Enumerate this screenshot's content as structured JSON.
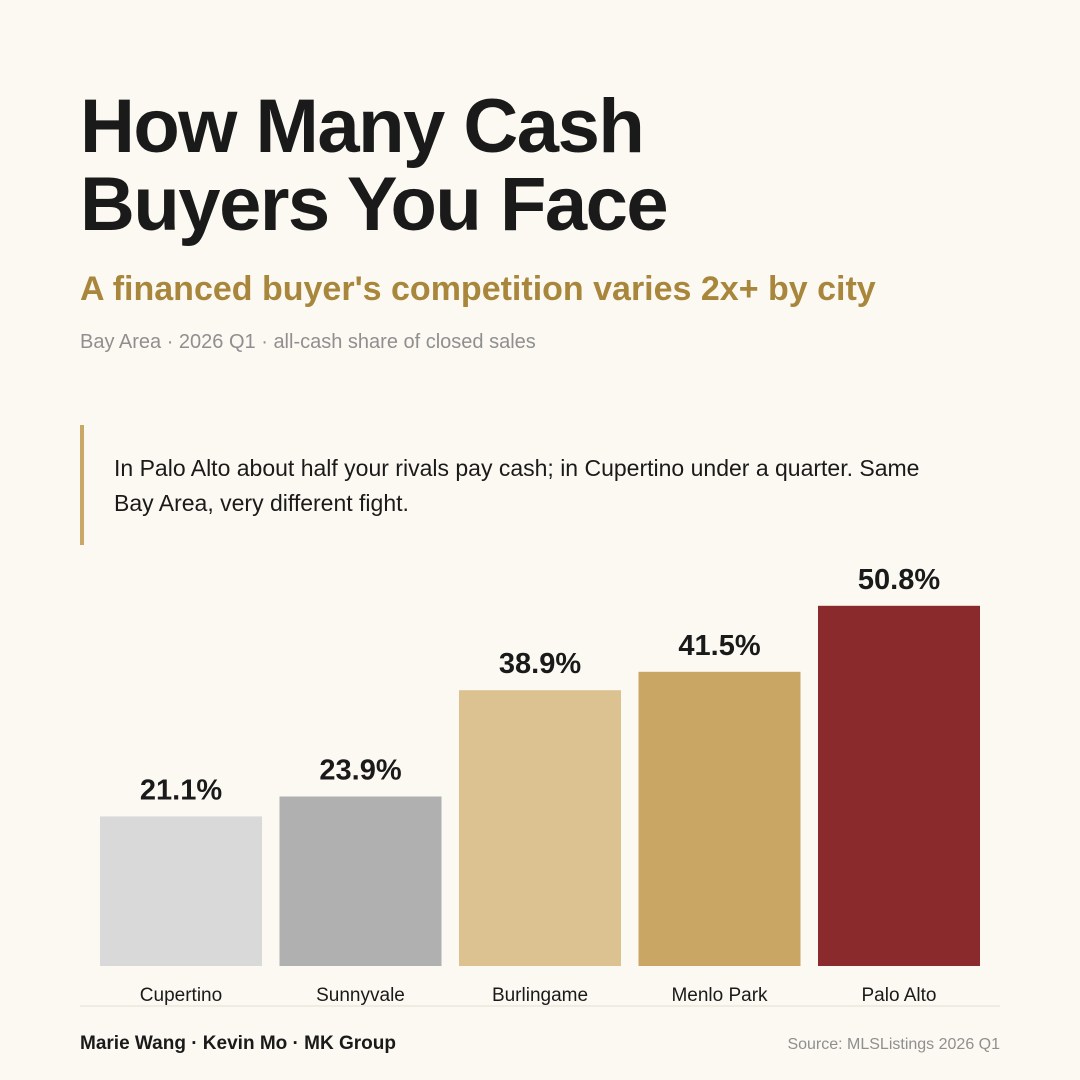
{
  "header": {
    "title_line1": "How Many Cash",
    "title_line2": "Buyers You Face",
    "subtitle": "A financed buyer's competition varies 2x+ by city",
    "meta": "Bay Area · 2026 Q1 · all-cash share of closed sales"
  },
  "callout": {
    "text": "In Palo Alto about half your rivals pay cash; in Cupertino under a quarter. Same Bay Area, very different fight."
  },
  "chart_data": {
    "type": "bar",
    "title": "How Many Cash Buyers You Face",
    "subtitle": "A financed buyer's competition varies 2x+ by city",
    "xlabel": "",
    "ylabel": "",
    "ylim": [
      0,
      60
    ],
    "grid": false,
    "legend": "none",
    "categories": [
      "Cupertino",
      "Sunnyvale",
      "Burlingame",
      "Menlo Park",
      "Palo Alto"
    ],
    "values": [
      21.1,
      23.9,
      38.9,
      41.5,
      50.8
    ],
    "value_labels": [
      "21.1%",
      "23.9%",
      "38.9%",
      "41.5%",
      "50.8%"
    ],
    "colors": [
      "#d9d9d9",
      "#b0b0b0",
      "#dbc290",
      "#c9a663",
      "#8b2a2d"
    ]
  },
  "footer": {
    "authors": "Marie Wang · Kevin Mo · MK Group",
    "source": "Source: MLSListings 2026 Q1"
  }
}
